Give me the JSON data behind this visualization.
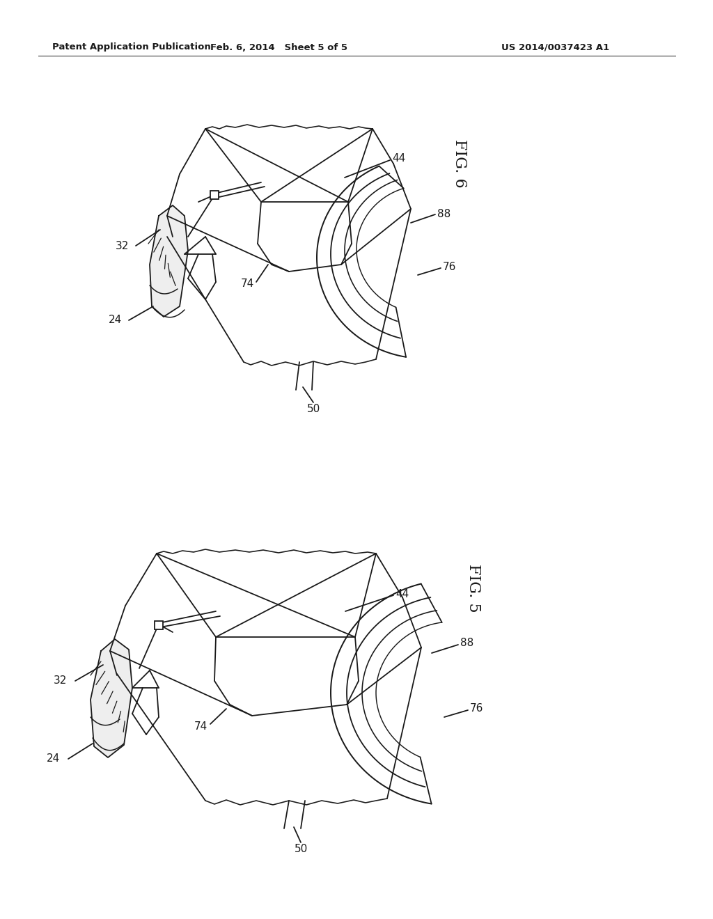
{
  "background_color": "#ffffff",
  "header_left": "Patent Application Publication",
  "header_center": "Feb. 6, 2014   Sheet 5 of 5",
  "header_right": "US 2014/0037423 A1",
  "line_color": "#1a1a1a",
  "line_width": 1.3,
  "fig6_label": "FIG. 6",
  "fig5_label": "FIG. 5",
  "annotation_fontsize": 11
}
